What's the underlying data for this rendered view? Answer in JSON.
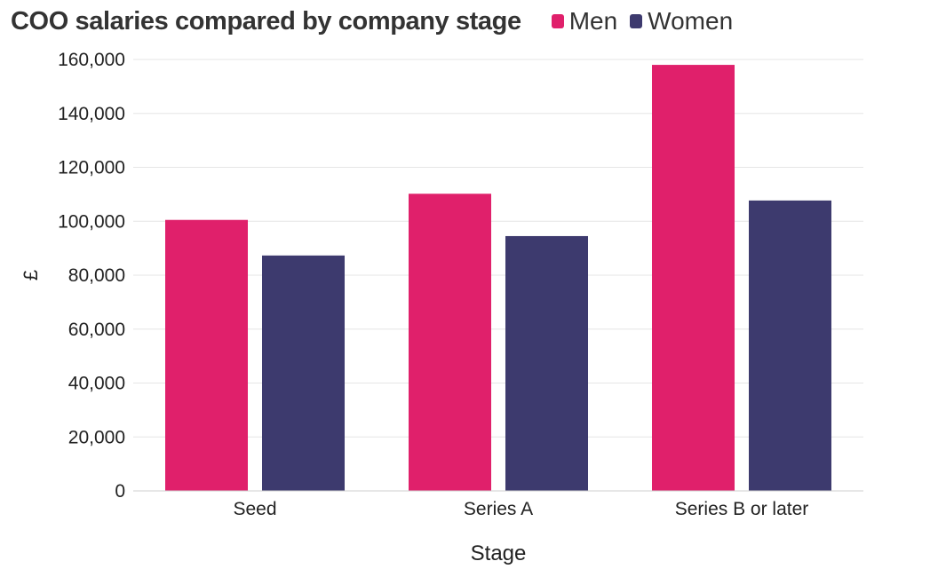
{
  "colors": {
    "men": "#e0206b",
    "women": "#3d3a6e"
  },
  "chart_data": {
    "type": "bar",
    "title": "COO salaries compared by company stage",
    "xlabel": "Stage",
    "ylabel": "£",
    "categories": [
      "Seed",
      "Series A",
      "Series B or later"
    ],
    "series": [
      {
        "name": "Men",
        "values": [
          100500,
          110200,
          158000
        ]
      },
      {
        "name": "Women",
        "values": [
          87300,
          94500,
          107700
        ]
      }
    ],
    "ylim": [
      0,
      160000
    ],
    "yticks": [
      "0",
      "20,000",
      "40,000",
      "60,000",
      "80,000",
      "100,000",
      "120,000",
      "140,000",
      "160,000"
    ],
    "grid": true,
    "legend_position": "top"
  }
}
